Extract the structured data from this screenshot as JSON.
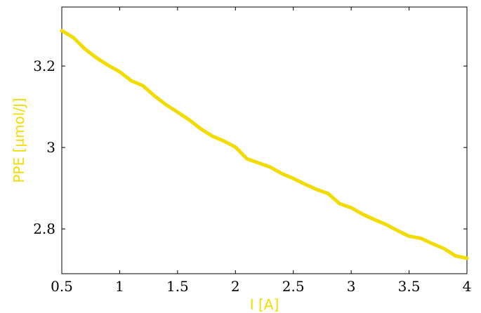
{
  "chart_data": {
    "type": "line",
    "xlabel": "I [A]",
    "ylabel": "PPE [µmol/J]",
    "xlim": [
      0.5,
      4
    ],
    "ylim": [
      2.69,
      3.345
    ],
    "x_ticks": [
      "0.5",
      "1",
      "1.5",
      "2",
      "2.5",
      "3",
      "3.5",
      "4"
    ],
    "y_ticks": [
      "2.8",
      "3",
      "3.2"
    ],
    "grid": false,
    "series": [
      {
        "color": "#f2dc00",
        "x": [
          0.5,
          0.6,
          0.7,
          0.8,
          0.9,
          1.0,
          1.1,
          1.2,
          1.3,
          1.4,
          1.5,
          1.6,
          1.7,
          1.8,
          1.9,
          2.0,
          2.1,
          2.2,
          2.3,
          2.4,
          2.5,
          2.6,
          2.7,
          2.8,
          2.9,
          3.0,
          3.1,
          3.2,
          3.3,
          3.4,
          3.5,
          3.6,
          3.7,
          3.8,
          3.9,
          4.0
        ],
        "y": [
          3.287,
          3.27,
          3.242,
          3.22,
          3.202,
          3.186,
          3.164,
          3.152,
          3.127,
          3.105,
          3.087,
          3.068,
          3.046,
          3.028,
          3.016,
          3.001,
          2.972,
          2.962,
          2.952,
          2.936,
          2.924,
          2.91,
          2.897,
          2.887,
          2.862,
          2.852,
          2.836,
          2.823,
          2.811,
          2.796,
          2.782,
          2.777,
          2.764,
          2.752,
          2.734,
          2.728
        ]
      }
    ]
  }
}
